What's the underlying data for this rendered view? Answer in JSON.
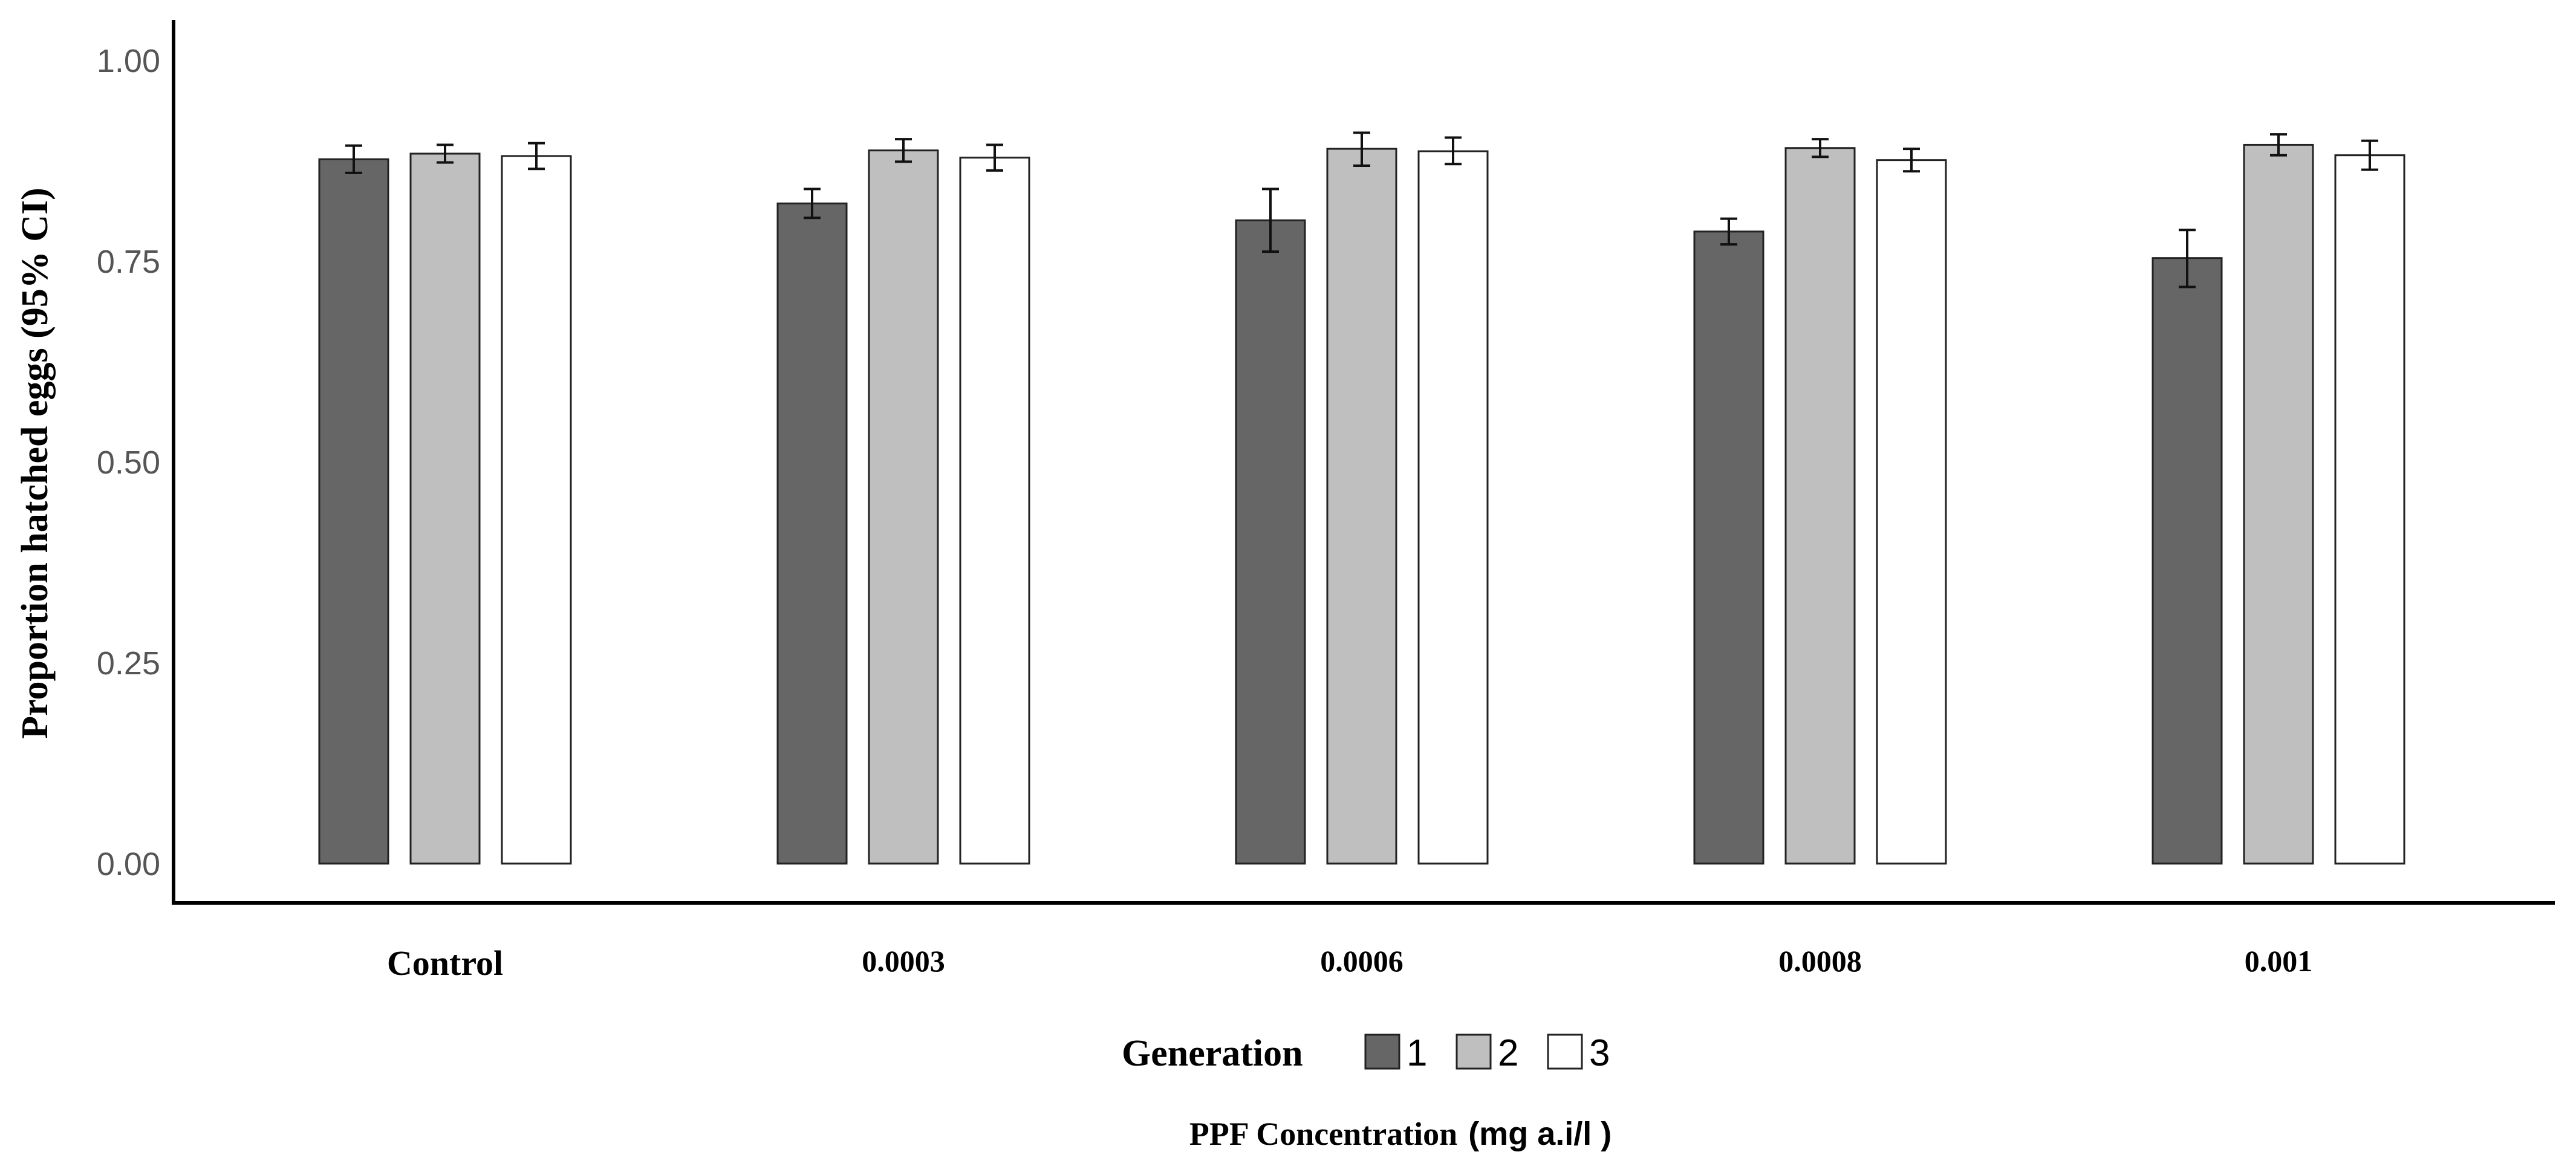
{
  "chart_data": {
    "type": "bar",
    "title": "",
    "ylabel": "Proportion hatched eggs (95% CI)",
    "xlabel_main": "PPF Concentration",
    "xlabel_unit": "(mg a.i/l )",
    "categories": [
      "Control",
      "0.0003",
      "0.0006",
      "0.0008",
      "0.001"
    ],
    "ylim": [
      0,
      1.0
    ],
    "yticks": [
      "0.00",
      "0.25",
      "0.50",
      "0.75",
      "1.00"
    ],
    "ytick_values": [
      0,
      0.25,
      0.5,
      0.75,
      1.0
    ],
    "legend_title": "Generation",
    "legend_position": "bottom",
    "series": [
      {
        "name": "1",
        "color": "#666666",
        "values": [
          0.877,
          0.822,
          0.801,
          0.787,
          0.754
        ],
        "ci_low": [
          0.86,
          0.804,
          0.762,
          0.771,
          0.718
        ],
        "ci_high": [
          0.894,
          0.84,
          0.84,
          0.803,
          0.789
        ]
      },
      {
        "name": "2",
        "color": "#bfbfbf",
        "values": [
          0.884,
          0.888,
          0.89,
          0.891,
          0.895
        ],
        "ci_low": [
          0.873,
          0.874,
          0.869,
          0.88,
          0.882
        ],
        "ci_high": [
          0.895,
          0.902,
          0.91,
          0.902,
          0.908
        ]
      },
      {
        "name": "3",
        "color": "#ffffff",
        "values": [
          0.881,
          0.879,
          0.887,
          0.876,
          0.882
        ],
        "ci_low": [
          0.865,
          0.863,
          0.871,
          0.862,
          0.864
        ],
        "ci_high": [
          0.897,
          0.895,
          0.904,
          0.89,
          0.9
        ]
      }
    ]
  }
}
